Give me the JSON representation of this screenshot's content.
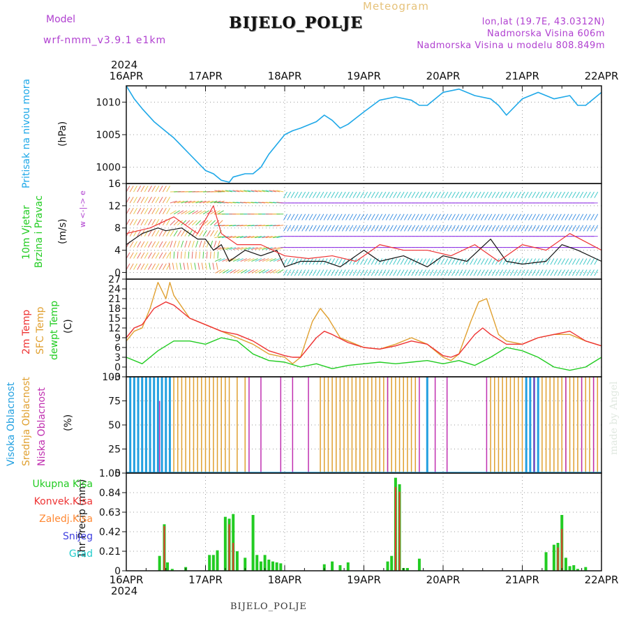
{
  "header": {
    "title": "BIJELO_POLJE",
    "subtitle": "Meteogram",
    "model_label": "Model",
    "model_name": "wrf-nmm_v3.9.1 e1km",
    "coords": "lon,lat (19.7E, 43.0312N)",
    "elevation": "Nadmorska Visina 606m",
    "model_elevation": "Nadmorska Visina u modelu 808.849m",
    "year": "2024",
    "bottom_name": "BIJELO_POLJE",
    "credit": "made by Angel"
  },
  "colors": {
    "pressure": "#1ea8e8",
    "wind_label": "#22cc22",
    "temp2m": "#ee3333",
    "sfc": "#e0a030",
    "dewpt": "#22cc22",
    "high_cloud": "#22a0e0",
    "mid_cloud": "#e0a030",
    "low_cloud": "#c030b0",
    "total_precip": "#22cc22",
    "conv_precip": "#ee3333",
    "frz_precip": "#ff8833",
    "snow": "#4040e0",
    "graupel": "#22cccc",
    "barb_purple": "#8a2be2"
  },
  "chart_data": [
    {
      "type": "line",
      "panel": "pressure",
      "ylabel_left": "Pritisak na nivou mora",
      "ylabel_unit": "(hPa)",
      "x_labels": [
        "16APR",
        "17APR",
        "18APR",
        "19APR",
        "20APR",
        "21APR",
        "22APR"
      ],
      "x_days": [
        0,
        6
      ],
      "ylim": [
        997.5,
        1012.5
      ],
      "yticks": [
        1000,
        1005,
        1010
      ],
      "grid": true,
      "series": [
        {
          "x": [
            0,
            0.1,
            0.2,
            0.35,
            0.5,
            0.6,
            0.8,
            1.0,
            1.1,
            1.2,
            1.3,
            1.35,
            1.5,
            1.6,
            1.7,
            1.8,
            1.9,
            2.0,
            2.1,
            2.2,
            2.3,
            2.4,
            2.5,
            2.6,
            2.7,
            2.8,
            3.0,
            3.2,
            3.4,
            3.6,
            3.7,
            3.8,
            4.0,
            4.2,
            4.4,
            4.6,
            4.7,
            4.8,
            5.0,
            5.2,
            5.4,
            5.6,
            5.7,
            5.8,
            6.0
          ],
          "values": [
            1012.5,
            1010.5,
            1009,
            1007,
            1005.5,
            1004.5,
            1002,
            999.5,
            999,
            998,
            997.7,
            998.5,
            999,
            999,
            1000,
            1002,
            1003.5,
            1005,
            1005.6,
            1006,
            1006.5,
            1007,
            1008,
            1007.2,
            1006,
            1006.6,
            1008.5,
            1010.3,
            1010.8,
            1010.3,
            1009.5,
            1009.5,
            1011.5,
            1012,
            1011,
            1010.5,
            1009.5,
            1008,
            1010.5,
            1011.5,
            1010.5,
            1011,
            1009.5,
            1009.5,
            1011.5
          ]
        }
      ]
    },
    {
      "type": "scatter",
      "panel": "wind",
      "ylabel_left": "10m Vjetar",
      "ylabel_left2": "Brzina i Pravac",
      "ylabel_unit": "(m/s)",
      "compass": "w <-|-> e",
      "ylim": [
        -1.2,
        16
      ],
      "yticks": [
        0,
        4,
        8,
        12,
        16
      ],
      "grid": true,
      "series": [
        {
          "name": "speed",
          "x": [
            0,
            0.2,
            0.4,
            0.5,
            0.7,
            0.9,
            1.0,
            1.1,
            1.2,
            1.3,
            1.5,
            1.7,
            1.9,
            2.0,
            2.2,
            2.5,
            2.7,
            3.0,
            3.2,
            3.5,
            3.8,
            4.0,
            4.3,
            4.6,
            4.7,
            4.8,
            5.0,
            5.3,
            5.5,
            5.7,
            6.0
          ],
          "values": [
            5,
            7,
            8,
            7.5,
            8,
            6,
            6,
            4,
            5,
            2,
            4,
            3,
            4,
            1,
            2,
            2,
            1,
            4,
            2,
            3,
            1,
            3,
            2,
            6,
            4,
            2,
            1.5,
            2,
            5,
            4,
            2
          ]
        },
        {
          "name": "gust",
          "x": [
            0,
            0.3,
            0.6,
            0.9,
            1.1,
            1.2,
            1.4,
            1.7,
            2.0,
            2.3,
            2.6,
            2.9,
            3.2,
            3.5,
            3.8,
            4.1,
            4.4,
            4.7,
            5.0,
            5.3,
            5.6,
            6.0
          ],
          "values": [
            7,
            8,
            10,
            7,
            12,
            7,
            5,
            5,
            3,
            2.5,
            3,
            2,
            5,
            4,
            4,
            3,
            5,
            2,
            5,
            4,
            7,
            4
          ]
        }
      ]
    },
    {
      "type": "line",
      "panel": "temperature",
      "ylabel_left": "2m Temp",
      "ylabel_left2": "SFC Temp",
      "ylabel_left3": "dewpt Temp",
      "ylabel_unit": "(C)",
      "ylim": [
        -3,
        27
      ],
      "yticks": [
        -3,
        0,
        3,
        6,
        9,
        12,
        15,
        18,
        21,
        24,
        27
      ],
      "grid": true,
      "series": [
        {
          "name": "2m Temp",
          "x": [
            0,
            0.1,
            0.2,
            0.35,
            0.5,
            0.6,
            0.8,
            1.0,
            1.2,
            1.4,
            1.6,
            1.8,
            2.0,
            2.1,
            2.2,
            2.4,
            2.5,
            2.6,
            2.8,
            3.0,
            3.2,
            3.4,
            3.6,
            3.8,
            4.0,
            4.1,
            4.2,
            4.4,
            4.5,
            4.6,
            4.8,
            5.0,
            5.2,
            5.4,
            5.6,
            5.8,
            6.0
          ],
          "values": [
            9,
            12,
            13,
            18,
            20,
            19,
            15,
            13,
            11,
            10,
            8,
            5,
            3.5,
            3,
            3,
            9,
            11,
            10,
            7.5,
            6,
            5.5,
            6.5,
            8,
            7,
            3.5,
            3,
            4,
            10,
            12,
            10,
            7,
            7,
            9,
            10,
            11,
            8,
            6.5
          ]
        },
        {
          "name": "SFC Temp",
          "x": [
            0,
            0.1,
            0.2,
            0.3,
            0.4,
            0.5,
            0.55,
            0.6,
            0.8,
            1.0,
            1.2,
            1.4,
            1.6,
            1.8,
            2.0,
            2.1,
            2.2,
            2.35,
            2.45,
            2.55,
            2.7,
            2.8,
            3.0,
            3.2,
            3.4,
            3.6,
            3.8,
            4.0,
            4.1,
            4.2,
            4.35,
            4.45,
            4.55,
            4.7,
            4.8,
            5.0,
            5.2,
            5.4,
            5.6,
            5.8,
            6.0
          ],
          "values": [
            8,
            11,
            12,
            18,
            26,
            21,
            26,
            22,
            15,
            13,
            11,
            9,
            7,
            4,
            3,
            1,
            3,
            14,
            18,
            15,
            9,
            8,
            6,
            5.5,
            7,
            9,
            7,
            3,
            2,
            4,
            14,
            20,
            21,
            10,
            8,
            7,
            9,
            10,
            10,
            8,
            6.5
          ]
        },
        {
          "name": "dewpt Temp",
          "x": [
            0,
            0.2,
            0.4,
            0.6,
            0.8,
            1.0,
            1.2,
            1.4,
            1.6,
            1.8,
            2.0,
            2.2,
            2.4,
            2.6,
            2.8,
            3.0,
            3.2,
            3.4,
            3.6,
            3.8,
            4.0,
            4.2,
            4.4,
            4.6,
            4.8,
            5.0,
            5.2,
            5.4,
            5.6,
            5.8,
            6.0
          ],
          "values": [
            3,
            1,
            5,
            8,
            8,
            7,
            9,
            8,
            4,
            2,
            1.5,
            0,
            1,
            -0.5,
            0.5,
            1,
            1.5,
            1,
            1.5,
            2,
            1,
            2,
            0.5,
            3,
            6,
            5,
            3,
            0,
            -1,
            0,
            3
          ]
        }
      ]
    },
    {
      "type": "bar",
      "panel": "clouds",
      "ylabel_left": "Visoka Oblacnost",
      "ylabel_left2": "Srednja Oblacnost",
      "ylabel_left3": "Niska Oblacnost",
      "ylabel_unit": "(%)",
      "ylim": [
        0,
        100
      ],
      "yticks": [
        0,
        25,
        50,
        75,
        100
      ],
      "grid": true,
      "series": [
        {
          "name": "Visoka Oblacnost",
          "x": [
            0.05,
            0.1,
            0.15,
            0.2,
            0.25,
            0.3,
            0.35,
            0.4,
            0.45,
            0.5,
            0.55,
            3.8,
            5.05,
            5.1,
            5.15,
            5.2
          ],
          "values": [
            100,
            100,
            100,
            100,
            100,
            100,
            100,
            100,
            100,
            100,
            100,
            100,
            100,
            100,
            100,
            100
          ]
        },
        {
          "name": "Srednja Oblacnost",
          "x": [
            0.6,
            0.65,
            0.7,
            0.75,
            0.8,
            0.85,
            0.9,
            0.95,
            1.0,
            1.05,
            1.1,
            1.15,
            1.2,
            1.25,
            1.3,
            1.4,
            1.5,
            2.45,
            2.5,
            2.55,
            2.6,
            2.65,
            2.7,
            2.75,
            2.8,
            2.85,
            2.9,
            2.95,
            3.0,
            3.05,
            3.1,
            3.15,
            3.2,
            3.25,
            3.3,
            3.35,
            3.4,
            3.45,
            3.5,
            3.55,
            3.6,
            3.65,
            4.6,
            4.65,
            4.7,
            4.75,
            4.8,
            4.85,
            4.9,
            4.95,
            5.0,
            5.25,
            5.3,
            5.35,
            5.4,
            5.45,
            5.5,
            5.55,
            5.6,
            5.65,
            5.7,
            5.75,
            5.8,
            5.85,
            5.9,
            5.95
          ],
          "values": [
            100,
            100,
            100,
            100,
            100,
            100,
            100,
            100,
            100,
            100,
            100,
            100,
            100,
            100,
            100,
            100,
            100,
            100,
            100,
            100,
            100,
            100,
            100,
            100,
            100,
            100,
            100,
            100,
            100,
            100,
            100,
            100,
            100,
            100,
            100,
            100,
            100,
            100,
            100,
            100,
            100,
            100,
            100,
            100,
            100,
            100,
            100,
            100,
            100,
            100,
            100,
            100,
            100,
            100,
            100,
            100,
            100,
            100,
            100,
            100,
            100,
            100,
            100,
            100,
            100,
            100
          ]
        },
        {
          "name": "Niska Oblacnost",
          "x": [
            0.42,
            1.55,
            1.7,
            1.95,
            2.1,
            2.3,
            3.3,
            3.7,
            3.9,
            4.05,
            4.55,
            5.15,
            5.55,
            5.75,
            5.9
          ],
          "values": [
            75,
            100,
            100,
            100,
            100,
            100,
            100,
            100,
            100,
            100,
            100,
            100,
            100,
            100,
            100
          ]
        }
      ]
    },
    {
      "type": "bar",
      "panel": "precip",
      "ylabel_unit": "1hr Precip (mm)",
      "legend": [
        "Ukupna Kisa",
        "Konvek.Kisa",
        "Zaledj.Kisa",
        "Snijeg",
        "Grad"
      ],
      "ylim": [
        0,
        1.05
      ],
      "yticks": [
        0,
        0.21,
        0.42,
        0.63,
        0.84,
        1.05
      ],
      "grid": true,
      "series": [
        {
          "name": "Ukupna Kisa",
          "x": [
            0.42,
            0.48,
            0.52,
            0.58,
            0.75,
            1.05,
            1.1,
            1.15,
            1.25,
            1.3,
            1.35,
            1.4,
            1.5,
            1.6,
            1.65,
            1.7,
            1.75,
            1.8,
            1.85,
            1.9,
            1.95,
            2.5,
            2.6,
            2.7,
            2.8,
            3.3,
            3.35,
            3.4,
            3.45,
            3.5,
            3.55,
            3.7,
            5.3,
            5.4,
            5.45,
            5.5,
            5.55,
            5.6,
            5.65,
            5.7,
            5.8
          ],
          "values": [
            0.16,
            0.5,
            0.09,
            0.02,
            0.04,
            0.17,
            0.17,
            0.22,
            0.58,
            0.56,
            0.61,
            0.21,
            0.14,
            0.6,
            0.17,
            0.1,
            0.17,
            0.12,
            0.1,
            0.09,
            0.08,
            0.07,
            0.1,
            0.06,
            0.09,
            0.1,
            0.16,
            1.0,
            0.93,
            0.03,
            0.03,
            0.13,
            0.2,
            0.28,
            0.3,
            0.6,
            0.14,
            0.05,
            0.06,
            0.02,
            0.04
          ]
        },
        {
          "name": "Konvek.Kisa",
          "x": [
            0.48,
            1.3,
            1.35,
            3.4,
            3.45,
            5.45,
            5.5
          ],
          "values": [
            0.48,
            0.5,
            0.3,
            0.9,
            0.85,
            0.25,
            0.45
          ]
        }
      ]
    }
  ]
}
